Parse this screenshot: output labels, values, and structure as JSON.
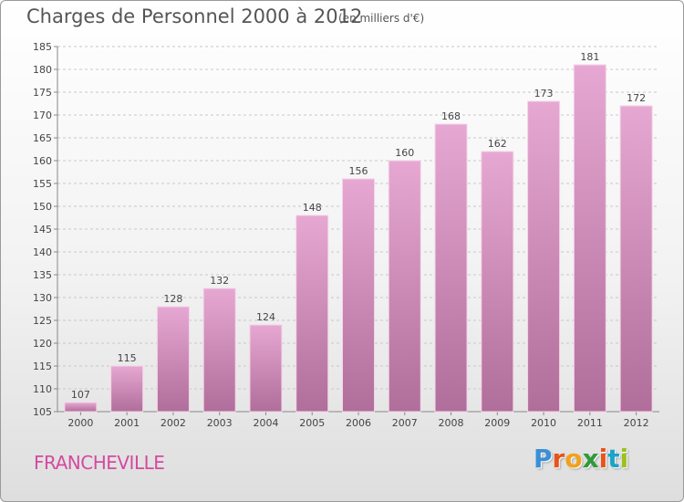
{
  "header": {
    "title": "Charges de Personnel 2000 à 2012",
    "subtitle": "(en milliers d'€)"
  },
  "footer": {
    "location": "FRANCHEVILLE",
    "logo_text": "Proxiti"
  },
  "colors": {
    "bar_top": "#e6a8d2",
    "bar_bottom": "#b06e9a",
    "bar_edge": "#f4d3e8",
    "location_text": "#d44aa0",
    "logo_letters": [
      "#3b8fd6",
      "#e8531c",
      "#f0a21c",
      "#2f9a3a",
      "#e8531c",
      "#1aa4c8",
      "#9ac21c"
    ]
  },
  "chart_data": {
    "type": "bar",
    "title": "Charges de Personnel 2000 à 2012",
    "subtitle": "(en milliers d'€)",
    "categories": [
      "2000",
      "2001",
      "2002",
      "2003",
      "2004",
      "2005",
      "2006",
      "2007",
      "2008",
      "2009",
      "2010",
      "2011",
      "2012"
    ],
    "values": [
      107,
      115,
      128,
      132,
      124,
      148,
      156,
      160,
      168,
      162,
      173,
      181,
      172
    ],
    "ylim": [
      105,
      185
    ],
    "yticks": [
      105,
      110,
      115,
      120,
      125,
      130,
      135,
      140,
      145,
      150,
      155,
      160,
      165,
      170,
      175,
      180,
      185
    ],
    "grid": true,
    "data_labels": true
  }
}
